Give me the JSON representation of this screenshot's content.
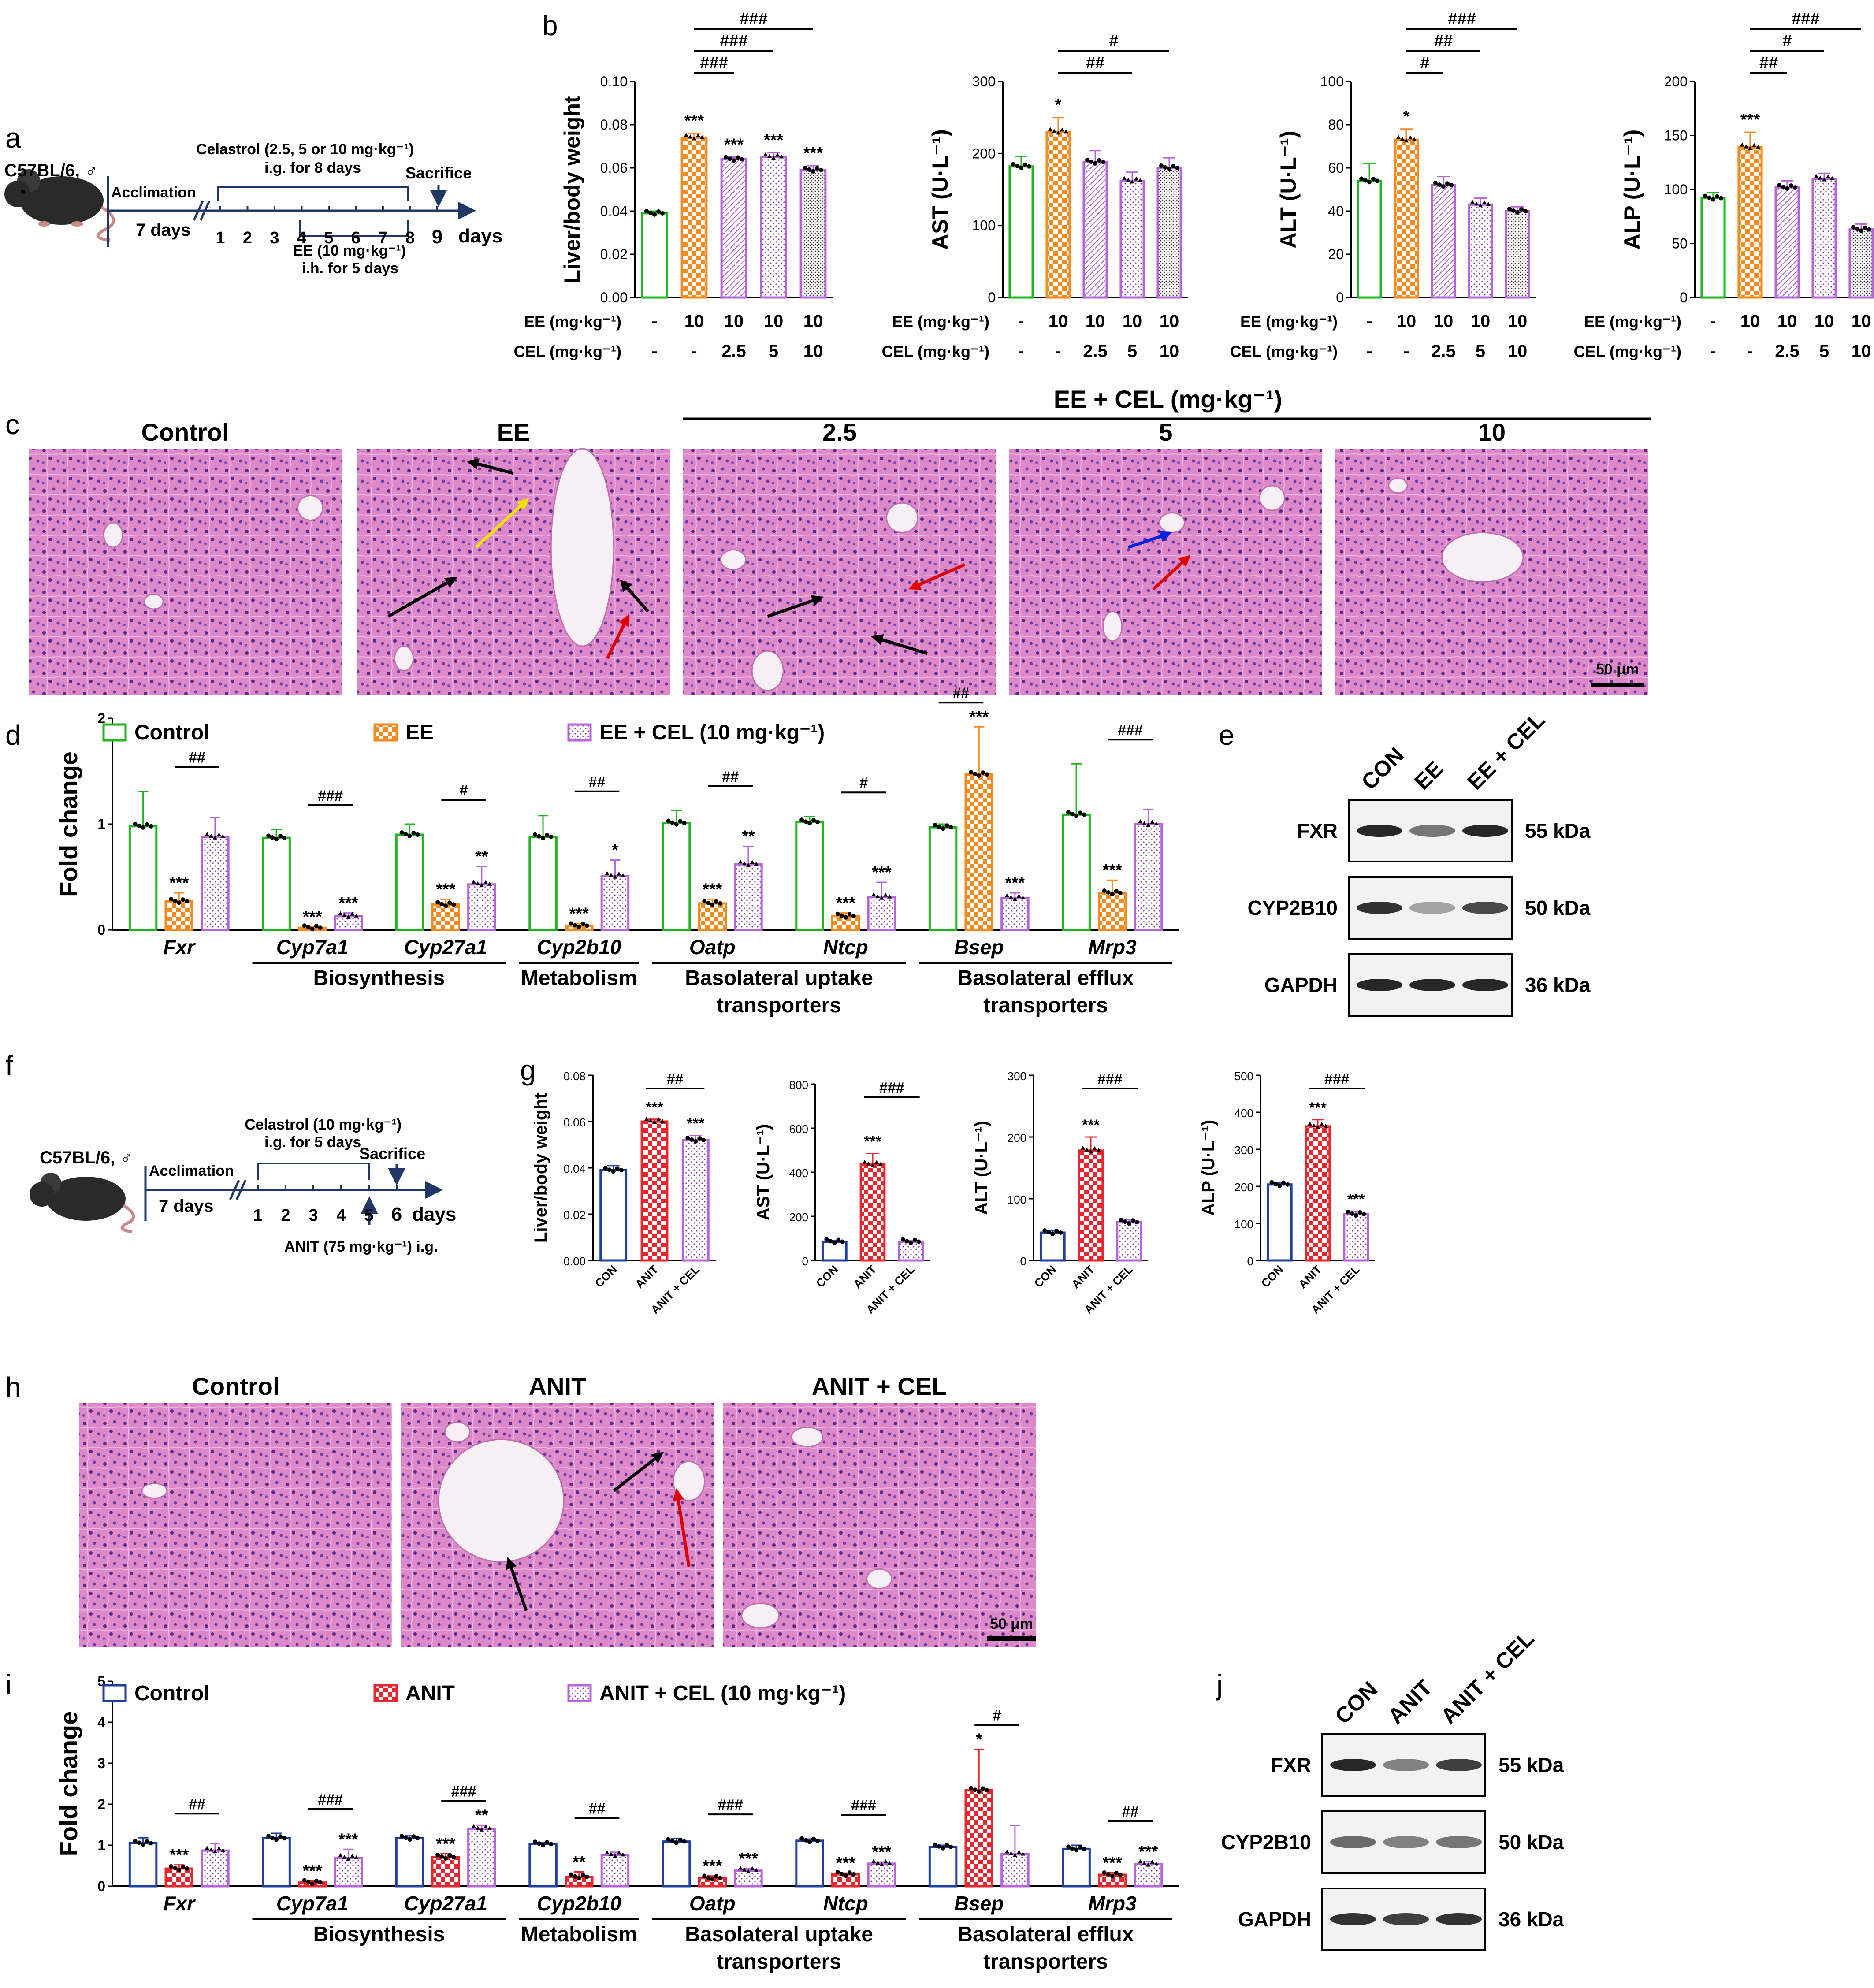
{
  "panel_letters": [
    "a",
    "b",
    "c",
    "d",
    "e",
    "f",
    "g",
    "h",
    "i",
    "j"
  ],
  "colors": {
    "control_green": "#1fb51f",
    "ee_orange": "#f58a1f",
    "cel_purple": "#b565d9",
    "con_blue": "#1f3f9f",
    "anit_red": "#e8262e",
    "timeline_navy": "#1f3866",
    "tissue_pink": "#dd88c8",
    "arrow_black": "#000000",
    "arrow_red": "#e00000",
    "arrow_yellow": "#f0e000",
    "arrow_blue": "#0020e0"
  },
  "panel_a": {
    "strain": "C57BL/6, ♂",
    "acclimation": "Acclimation",
    "acclimation_days": "7 days",
    "drug_line1": "Celastrol (2.5, 5 or 10 mg·kg⁻¹)",
    "drug_line2": "i.g. for 8 days",
    "sacrifice": "Sacrifice",
    "day_ticks": [
      "1",
      "2",
      "3",
      "4",
      "5",
      "6",
      "7",
      "8",
      "9"
    ],
    "days_label": "days",
    "ee_line1": "EE (10 mg·kg⁻¹)",
    "ee_line2": "i.h. for 5 days"
  },
  "panel_b": {
    "ee_row_label": "EE (mg·kg⁻¹)",
    "cel_row_label": "CEL (mg·kg⁻¹)",
    "ee_values": [
      "-",
      "10",
      "10",
      "10",
      "10"
    ],
    "cel_values": [
      "-",
      "-",
      "2.5",
      "5",
      "10"
    ]
  },
  "panel_c": {
    "group_header": "EE + CEL (mg·kg⁻¹)",
    "titles": [
      "Control",
      "EE",
      "2.5",
      "5",
      "10"
    ],
    "scale_bar": "50 μm"
  },
  "panel_d": {
    "legend": [
      "Control",
      "EE",
      "EE + CEL (10 mg·kg⁻¹)"
    ],
    "ylabel": "Fold change",
    "genes": [
      "Fxr",
      "Cyp7a1",
      "Cyp27a1",
      "Cyp2b10",
      "Oatp",
      "Ntcp",
      "Bsep",
      "Mrp3"
    ],
    "categories": [
      "Biosynthesis",
      "Metabolism",
      "Basolateral uptake transporters",
      "Basolateral efflux transporters"
    ]
  },
  "panel_e": {
    "lanes": [
      "CON",
      "EE",
      "EE + CEL"
    ],
    "proteins": [
      "FXR",
      "CYP2B10",
      "GAPDH"
    ],
    "sizes": [
      "55 kDa",
      "50 kDa",
      "36 kDa"
    ]
  },
  "panel_f": {
    "strain": "C57BL/6, ♂",
    "acclimation": "Acclimation",
    "acclimation_days": "7 days",
    "drug_line1": "Celastrol (10 mg·kg⁻¹)",
    "drug_line2": "i.g. for 5 days",
    "sacrifice": "Sacrifice",
    "day_ticks": [
      "1",
      "2",
      "3",
      "4",
      "5",
      "6"
    ],
    "days_label": "days",
    "anit": "ANIT (75 mg·kg⁻¹) i.g."
  },
  "panel_g": {
    "groups": [
      "CON",
      "ANIT",
      "ANIT + CEL"
    ]
  },
  "panel_h": {
    "titles": [
      "Control",
      "ANIT",
      "ANIT + CEL"
    ],
    "scale_bar": "50 μm"
  },
  "panel_i": {
    "legend": [
      "Control",
      "ANIT",
      "ANIT + CEL (10 mg·kg⁻¹)"
    ],
    "ylabel": "Fold change",
    "genes": [
      "Fxr",
      "Cyp7a1",
      "Cyp27a1",
      "Cyp2b10",
      "Oatp",
      "Ntcp",
      "Bsep",
      "Mrp3"
    ],
    "categories": [
      "Biosynthesis",
      "Metabolism",
      "Basolateral uptake transporters",
      "Basolateral efflux transporters"
    ]
  },
  "panel_j": {
    "lanes": [
      "CON",
      "ANIT",
      "ANIT + CEL"
    ],
    "proteins": [
      "FXR",
      "CYP2B10",
      "GAPDH"
    ],
    "sizes": [
      "55 kDa",
      "50 kDa",
      "36 kDa"
    ]
  },
  "chart_data": [
    {
      "id": "b1",
      "type": "bar",
      "ylabel": "Liver/body weight",
      "ylim": [
        0,
        0.1
      ],
      "yticks": [
        "0.00",
        "0.02",
        "0.04",
        "0.06",
        "0.08",
        "0.10"
      ],
      "values": [
        0.039,
        0.074,
        0.064,
        0.065,
        0.059
      ],
      "errors": [
        0.001,
        0.002,
        0.001,
        0.002,
        0.002
      ],
      "stars": [
        "",
        "***",
        "***",
        "***",
        "***"
      ],
      "brackets": [
        {
          "from": 1,
          "to": 2,
          "label": "###"
        },
        {
          "from": 1,
          "to": 3,
          "label": "###"
        },
        {
          "from": 1,
          "to": 4,
          "label": "###"
        }
      ]
    },
    {
      "id": "b2",
      "type": "bar",
      "ylabel": "AST (U·L⁻¹)",
      "ylim": [
        0,
        300
      ],
      "yticks": [
        "0",
        "100",
        "200",
        "300"
      ],
      "values": [
        182,
        230,
        188,
        162,
        180
      ],
      "errors": [
        14,
        20,
        16,
        12,
        14
      ],
      "stars": [
        "",
        "*",
        "",
        "",
        ""
      ],
      "brackets": [
        {
          "from": 1,
          "to": 3,
          "label": "##"
        },
        {
          "from": 1,
          "to": 4,
          "label": "#"
        }
      ]
    },
    {
      "id": "b3",
      "type": "bar",
      "ylabel": "ALT (U·L⁻¹)",
      "ylim": [
        0,
        100
      ],
      "yticks": [
        "0",
        "20",
        "40",
        "60",
        "80",
        "100"
      ],
      "values": [
        54,
        73,
        52,
        43,
        40
      ],
      "errors": [
        8,
        5,
        4,
        3,
        2
      ],
      "stars": [
        "",
        "*",
        "",
        "",
        ""
      ],
      "brackets": [
        {
          "from": 1,
          "to": 2,
          "label": "#"
        },
        {
          "from": 1,
          "to": 3,
          "label": "##"
        },
        {
          "from": 1,
          "to": 4,
          "label": "###"
        }
      ]
    },
    {
      "id": "b4",
      "type": "bar",
      "ylabel": "ALP (U·L⁻¹)",
      "ylim": [
        0,
        200
      ],
      "yticks": [
        "0",
        "50",
        "100",
        "150",
        "200"
      ],
      "values": [
        92,
        139,
        102,
        110,
        63
      ],
      "errors": [
        5,
        14,
        6,
        5,
        5
      ],
      "stars": [
        "",
        "***",
        "",
        "",
        ""
      ],
      "brackets": [
        {
          "from": 1,
          "to": 2,
          "label": "##"
        },
        {
          "from": 1,
          "to": 3,
          "label": "#"
        },
        {
          "from": 1,
          "to": 4,
          "label": "###"
        }
      ]
    },
    {
      "id": "d",
      "type": "bar",
      "ylabel": "Fold change",
      "ylim": [
        0,
        2
      ],
      "yticks": [
        "0",
        "1",
        "2"
      ],
      "categories": [
        "Fxr",
        "Cyp7a1",
        "Cyp27a1",
        "Cyp2b10",
        "Oatp",
        "Ntcp",
        "Bsep",
        "Mrp3"
      ],
      "series": [
        {
          "name": "Control",
          "values": [
            0.98,
            0.87,
            0.9,
            0.88,
            1.01,
            1.02,
            0.97,
            1.09
          ],
          "errors": [
            0.33,
            0.08,
            0.1,
            0.2,
            0.12,
            0.05,
            0.03,
            0.48
          ]
        },
        {
          "name": "EE",
          "values": [
            0.27,
            0.02,
            0.24,
            0.04,
            0.25,
            0.13,
            1.47,
            0.35
          ],
          "errors": [
            0.08,
            0.01,
            0.05,
            0.02,
            0.04,
            0.03,
            0.45,
            0.12
          ]
        },
        {
          "name": "EE + CEL (10 mg·kg⁻¹)",
          "values": [
            0.88,
            0.13,
            0.43,
            0.51,
            0.62,
            0.31,
            0.3,
            1.0
          ],
          "errors": [
            0.18,
            0.03,
            0.17,
            0.15,
            0.17,
            0.14,
            0.05,
            0.14
          ]
        }
      ],
      "stars": [
        [
          "",
          "***",
          ""
        ],
        [
          "",
          "***",
          "***"
        ],
        [
          "",
          "***",
          "**"
        ],
        [
          "",
          "***",
          "*"
        ],
        [
          "",
          "***",
          "**"
        ],
        [
          "",
          "***",
          "***"
        ],
        [
          "",
          "***",
          "***"
        ],
        [
          "",
          "***",
          ""
        ]
      ],
      "hash": [
        "##",
        "###",
        "#",
        "##",
        "##",
        "#",
        "##",
        "###"
      ],
      "hash_between": [
        [
          1,
          2
        ],
        [
          1,
          2
        ],
        [
          1,
          2
        ],
        [
          1,
          2
        ],
        [
          1,
          2
        ],
        [
          1,
          2
        ],
        [
          0,
          1
        ],
        [
          1,
          2
        ]
      ]
    },
    {
      "id": "g1",
      "type": "bar",
      "ylabel": "Liver/body weight",
      "ylim": [
        0,
        0.08
      ],
      "yticks": [
        "0.00",
        "0.02",
        "0.04",
        "0.06",
        "0.08"
      ],
      "values": [
        0.039,
        0.06,
        0.052
      ],
      "errors": [
        0.002,
        0.001,
        0.002
      ],
      "stars": [
        "",
        "***",
        "***"
      ],
      "hash": "##"
    },
    {
      "id": "g2",
      "type": "bar",
      "ylabel": "AST (U·L⁻¹)",
      "ylim": [
        0,
        800
      ],
      "yticks": [
        "0",
        "200",
        "400",
        "600",
        "800"
      ],
      "values": [
        85,
        435,
        85
      ],
      "errors": [
        4,
        50,
        5
      ],
      "stars": [
        "",
        "***",
        ""
      ],
      "hash": "###"
    },
    {
      "id": "g3",
      "type": "bar",
      "ylabel": "ALT (U·L⁻¹)",
      "ylim": [
        0,
        300
      ],
      "yticks": [
        "0",
        "100",
        "200",
        "300"
      ],
      "values": [
        45,
        178,
        62
      ],
      "errors": [
        4,
        22,
        4
      ],
      "stars": [
        "",
        "***",
        ""
      ],
      "hash": "###"
    },
    {
      "id": "g4",
      "type": "bar",
      "ylabel": "ALP (U·L⁻¹)",
      "ylim": [
        0,
        500
      ],
      "yticks": [
        "0",
        "100",
        "200",
        "300",
        "400",
        "500"
      ],
      "values": [
        205,
        362,
        125
      ],
      "errors": [
        4,
        18,
        8
      ],
      "stars": [
        "",
        "***",
        "***"
      ],
      "hash": "###"
    },
    {
      "id": "i",
      "type": "bar",
      "ylabel": "Fold change",
      "ylim": [
        0,
        5
      ],
      "yticks": [
        "0",
        "1",
        "2",
        "3",
        "4",
        "5"
      ],
      "categories": [
        "Fxr",
        "Cyp7a1",
        "Cyp27a1",
        "Cyp2b10",
        "Oatp",
        "Ntcp",
        "Bsep",
        "Mrp3"
      ],
      "series": [
        {
          "name": "Control",
          "values": [
            1.05,
            1.17,
            1.17,
            1.03,
            1.09,
            1.11,
            0.96,
            0.91
          ],
          "errors": [
            0.13,
            0.12,
            0.06,
            0.04,
            0.07,
            0.04,
            0.04,
            0.09
          ]
        },
        {
          "name": "ANIT",
          "values": [
            0.43,
            0.09,
            0.71,
            0.23,
            0.2,
            0.29,
            2.34,
            0.28
          ],
          "errors": [
            0.09,
            0.04,
            0.08,
            0.12,
            0.05,
            0.03,
            1.0,
            0.05
          ]
        },
        {
          "name": "ANIT + CEL (10 mg·kg⁻¹)",
          "values": [
            0.87,
            0.69,
            1.4,
            0.76,
            0.38,
            0.55,
            0.78,
            0.54
          ],
          "errors": [
            0.18,
            0.21,
            0.09,
            0.07,
            0.05,
            0.04,
            0.7,
            0.06
          ]
        }
      ],
      "stars": [
        [
          "",
          "***",
          ""
        ],
        [
          "",
          "***",
          "***"
        ],
        [
          "",
          "***",
          "**"
        ],
        [
          "",
          "**",
          ""
        ],
        [
          "",
          "***",
          "***"
        ],
        [
          "",
          "***",
          "***"
        ],
        [
          "",
          "*",
          ""
        ],
        [
          "",
          "***",
          "***"
        ]
      ],
      "hash": [
        "##",
        "###",
        "###",
        "##",
        "###",
        "###",
        "#",
        "##"
      ],
      "hash_between": [
        [
          1,
          2
        ],
        [
          1,
          2
        ],
        [
          1,
          2
        ],
        [
          1,
          2
        ],
        [
          1,
          2
        ],
        [
          1,
          2
        ],
        [
          1,
          2
        ],
        [
          1,
          2
        ]
      ]
    }
  ]
}
